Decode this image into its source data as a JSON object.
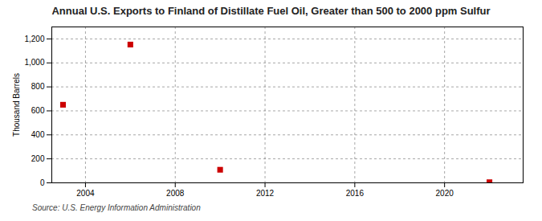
{
  "chart_data": {
    "type": "scatter",
    "title": "Annual U.S. Exports to Finland of Distillate Fuel Oil, Greater than 500 to 2000 ppm Sulfur",
    "ylabel": "Thousand Barrels",
    "source": "Source: U.S. Energy Information Administration",
    "x": [
      2003,
      2006,
      2010,
      2022
    ],
    "values": [
      651,
      1153,
      109,
      5
    ],
    "color": "#cc0000",
    "marker": "square",
    "xlim": [
      2002.5,
      2023.5
    ],
    "xticks": [
      2004,
      2008,
      2012,
      2016,
      2020
    ],
    "ylim": [
      0,
      1300
    ],
    "yticks": [
      0,
      200,
      400,
      600,
      800,
      {
        "value": 1000,
        "label": "1,000"
      },
      {
        "value": 1200,
        "label": "1,200"
      }
    ],
    "grid": true
  }
}
